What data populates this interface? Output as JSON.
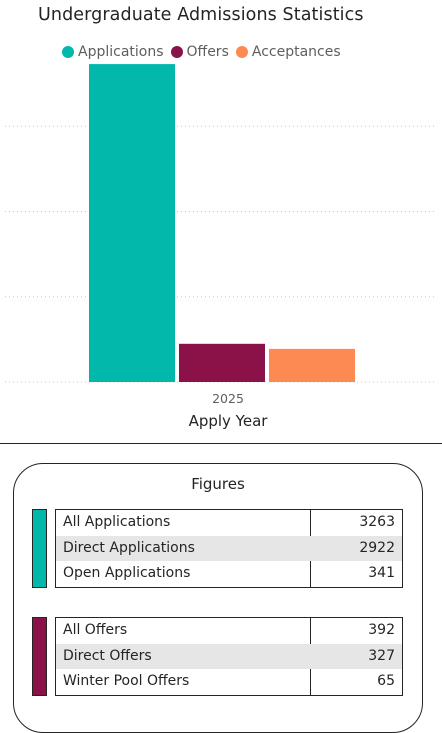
{
  "chart_data": {
    "type": "bar",
    "title": "Undergraduate Admissions Statistics",
    "xlabel": "Apply Year",
    "ylabel": "",
    "categories": [
      "2025"
    ],
    "series": [
      {
        "name": "Applications",
        "values": [
          3263
        ],
        "color": "#01b8aa"
      },
      {
        "name": "Offers",
        "values": [
          392
        ],
        "color": "#8b1149"
      },
      {
        "name": "Acceptances",
        "values": [
          340
        ],
        "color": "#fd8953"
      }
    ],
    "ylim": [
      0,
      3500
    ],
    "grid": true,
    "legend_position": "top-left"
  },
  "figures": {
    "title": "Figures",
    "applications": {
      "color": "#01b8aa",
      "rows": [
        {
          "label": "All Applications",
          "value": "3263"
        },
        {
          "label": "Direct Applications",
          "value": "2922"
        },
        {
          "label": "Open Applications",
          "value": "341"
        }
      ]
    },
    "offers": {
      "color": "#8b1149",
      "rows": [
        {
          "label": "All Offers",
          "value": "392"
        },
        {
          "label": "Direct Offers",
          "value": "327"
        },
        {
          "label": "Winter Pool Offers",
          "value": "65"
        }
      ]
    }
  }
}
